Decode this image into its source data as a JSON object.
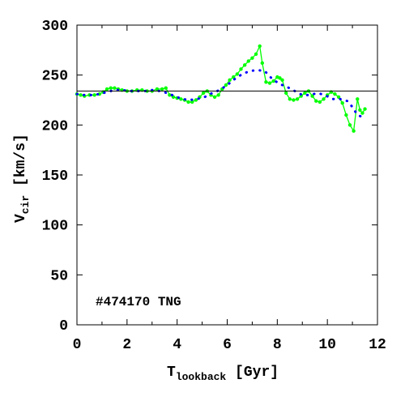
{
  "chart_data": {
    "type": "line",
    "xlabel_main": "T",
    "xlabel_sub": "lookback",
    "xlabel_unit": " [Gyr]",
    "ylabel_main": "V",
    "ylabel_sub": "cir",
    "ylabel_unit": " [km/s]",
    "annotation": "#474170 TNG",
    "xlim": [
      0,
      12
    ],
    "ylim": [
      0,
      300
    ],
    "xticks": [
      0,
      2,
      4,
      6,
      8,
      10,
      12
    ],
    "yticks": [
      0,
      50,
      100,
      150,
      200,
      250,
      300
    ],
    "reference_line": 234,
    "series": [
      {
        "style": "line-markers",
        "color": "#00ff00",
        "x": [
          0.0,
          0.15,
          0.3,
          0.5,
          0.7,
          0.9,
          1.05,
          1.2,
          1.35,
          1.5,
          1.65,
          1.8,
          2.0,
          2.2,
          2.4,
          2.6,
          2.8,
          3.0,
          3.2,
          3.4,
          3.55,
          3.7,
          3.85,
          4.0,
          4.15,
          4.3,
          4.45,
          4.6,
          4.75,
          4.9,
          5.05,
          5.2,
          5.35,
          5.5,
          5.65,
          5.8,
          5.95,
          6.1,
          6.25,
          6.4,
          6.55,
          6.7,
          6.85,
          7.0,
          7.15,
          7.3,
          7.4,
          7.55,
          7.7,
          7.85,
          8.0,
          8.1,
          8.2,
          8.35,
          8.5,
          8.65,
          8.8,
          8.95,
          9.1,
          9.25,
          9.4,
          9.55,
          9.7,
          9.85,
          10.0,
          10.15,
          10.3,
          10.45,
          10.6,
          10.75,
          10.9,
          11.05,
          11.2,
          11.3,
          11.4,
          11.5
        ],
        "y": [
          231,
          230,
          229,
          230,
          230,
          231,
          233,
          236,
          237,
          237,
          236,
          235,
          234,
          234,
          235,
          235,
          234,
          234,
          236,
          236,
          237,
          230,
          228,
          227,
          226,
          225,
          223,
          223,
          225,
          228,
          232,
          234,
          230,
          228,
          230,
          236,
          240,
          245,
          248,
          251,
          256,
          260,
          264,
          267,
          271,
          279,
          262,
          243,
          242,
          244,
          248,
          247,
          245,
          232,
          226,
          225,
          226,
          229,
          232,
          234,
          229,
          224,
          223,
          226,
          230,
          233,
          231,
          228,
          222,
          210,
          200,
          194,
          226,
          215,
          212,
          216
        ]
      },
      {
        "style": "dotted",
        "color": "#0000ff",
        "x": [
          0.0,
          0.3,
          0.6,
          0.9,
          1.2,
          1.5,
          1.8,
          2.1,
          2.4,
          2.7,
          3.0,
          3.3,
          3.6,
          3.9,
          4.2,
          4.5,
          4.8,
          5.1,
          5.4,
          5.7,
          6.0,
          6.3,
          6.6,
          6.9,
          7.2,
          7.5,
          7.8,
          8.1,
          8.4,
          8.7,
          9.0,
          9.3,
          9.6,
          9.9,
          10.2,
          10.5,
          10.8,
          11.0,
          11.2,
          11.4
        ],
        "y": [
          231,
          230,
          230,
          231,
          233,
          235,
          235,
          234,
          234,
          234,
          235,
          234,
          232,
          229,
          226,
          225,
          226,
          228,
          232,
          235,
          240,
          246,
          251,
          254,
          255,
          254,
          246,
          241,
          238,
          234,
          230,
          230,
          232,
          230,
          226,
          226,
          224,
          218,
          210,
          208
        ]
      }
    ]
  }
}
